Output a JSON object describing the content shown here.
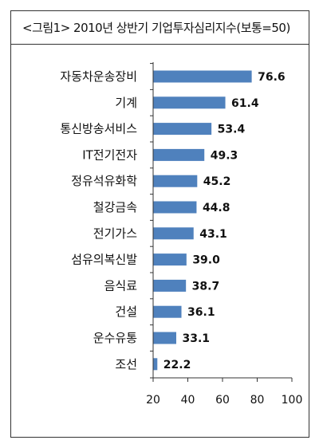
{
  "header": {
    "title": "<그림1> 2010년 상반기 기업투자심리지수(보통=50)"
  },
  "chart_data": {
    "type": "bar",
    "orientation": "horizontal",
    "title": "<그림1> 2010년 상반기 기업투자심리지수(보통=50)",
    "categories": [
      "자동차운송장비",
      "기계",
      "통신방송서비스",
      "IT전기전자",
      "정유석유화학",
      "철강금속",
      "전기가스",
      "섬유의복신발",
      "음식료",
      "건설",
      "운수유통",
      "조선"
    ],
    "values": [
      76.6,
      61.4,
      53.4,
      49.3,
      45.2,
      44.8,
      43.1,
      39.0,
      38.7,
      36.1,
      33.1,
      22.2
    ],
    "value_labels": [
      "76.6",
      "61.4",
      "53.4",
      "49.3",
      "45.2",
      "44.8",
      "43.1",
      "39.0",
      "38.7",
      "36.1",
      "33.1",
      "22.2"
    ],
    "xlim": [
      20,
      100
    ],
    "xticks": [
      "20",
      "40",
      "60",
      "80",
      "100"
    ],
    "bar_color": "#4F81BD",
    "grid": false,
    "legend": "none"
  }
}
